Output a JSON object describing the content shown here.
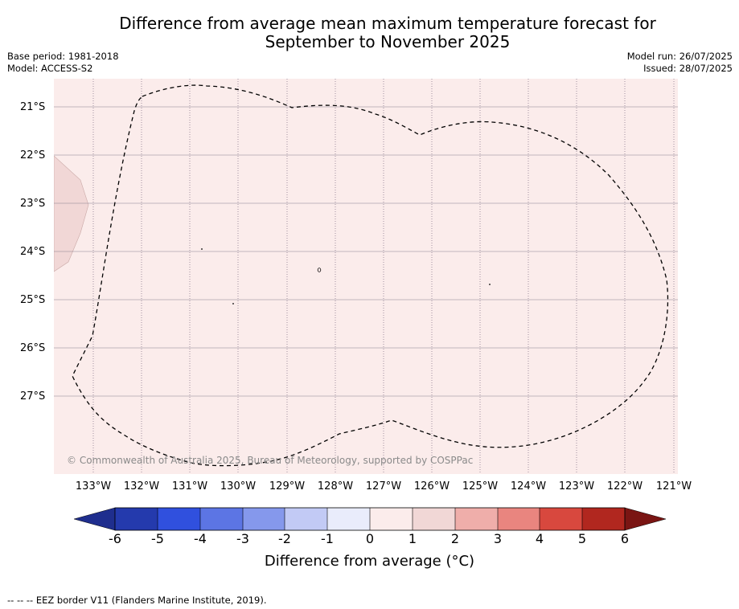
{
  "title_line1": "Difference from average mean maximum temperature forecast for",
  "title_line2": "September to November 2025",
  "meta_left": {
    "base_period": "Base period: 1981-2018",
    "model": "Model: ACCESS-S2"
  },
  "meta_right": {
    "model_run": "Model run: 26/07/2025",
    "issued": "Issued: 28/07/2025"
  },
  "copyright": "© Commonwealth of Australia 2025, Bureau of Meteorology, supported by COSPPac",
  "lat_labels": [
    "21°S",
    "22°S",
    "23°S",
    "24°S",
    "25°S",
    "26°S",
    "27°S"
  ],
  "lon_labels": [
    "133°W",
    "132°W",
    "131°W",
    "130°W",
    "129°W",
    "128°W",
    "127°W",
    "126°W",
    "125°W",
    "124°W",
    "123°W",
    "122°W",
    "121°W"
  ],
  "colorbar": {
    "ticks": [
      "-6",
      "-5",
      "-4",
      "-3",
      "-2",
      "-1",
      "0",
      "1",
      "2",
      "3",
      "4",
      "5",
      "6"
    ],
    "colors": [
      "#1f2e8e",
      "#243aad",
      "#3050de",
      "#5c75e4",
      "#8598ec",
      "#c2caf5",
      "#e9ecfb",
      "#fbeceb",
      "#f1d7d6",
      "#efaeaa",
      "#e9857f",
      "#d8483e",
      "#b1271f",
      "#7a1513"
    ],
    "label": "Difference from average (°C)"
  },
  "map_colors": {
    "background": "#fbeceb",
    "west_patch": "#f1d7d6",
    "eez_line": "#000000"
  },
  "footnote": "-- -- -- EEZ border V11 (Flanders Marine Institute, 2019)."
}
